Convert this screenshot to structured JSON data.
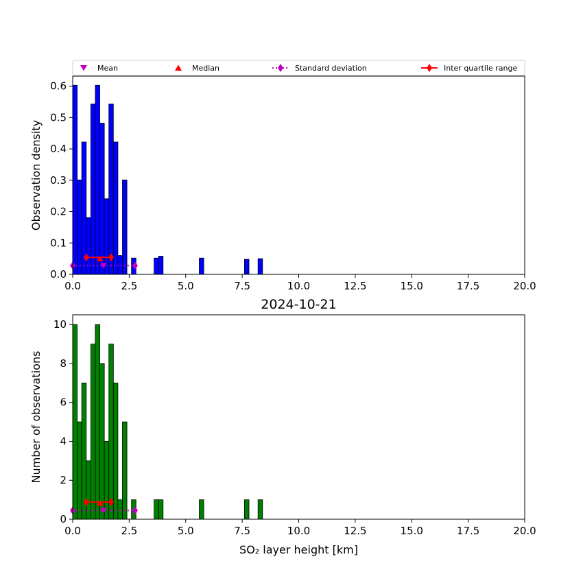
{
  "chart_data": [
    {
      "type": "bar",
      "ylabel": "Observation density",
      "xlabel": "",
      "xlim": [
        0,
        20
      ],
      "ylim": [
        0,
        0.632
      ],
      "xticks": [
        0.0,
        2.5,
        5.0,
        7.5,
        10.0,
        12.5,
        15.0,
        17.5,
        20.0
      ],
      "xtick_labels": [
        "0.0",
        "2.5",
        "5.0",
        "7.5",
        "10.0",
        "12.5",
        "15.0",
        "17.5",
        "20.0"
      ],
      "yticks": [
        0.0,
        0.1,
        0.2,
        0.3,
        0.4,
        0.5,
        0.6
      ],
      "ytick_labels": [
        "0.0",
        "0.1",
        "0.2",
        "0.3",
        "0.4",
        "0.5",
        "0.6"
      ],
      "bar_color": "#0000ff",
      "bin_width": 0.2,
      "bin_starts": [
        0.0,
        0.2,
        0.4,
        0.6,
        0.8,
        1.0,
        1.2,
        1.4,
        1.6,
        1.8,
        2.0,
        2.2,
        2.6,
        3.6,
        3.8,
        5.6,
        7.6,
        8.2
      ],
      "values": [
        0.603,
        0.301,
        0.422,
        0.181,
        0.543,
        0.603,
        0.482,
        0.241,
        0.543,
        0.422,
        0.06,
        0.301,
        0.052,
        0.052,
        0.058,
        0.052,
        0.048,
        0.05
      ],
      "stats": {
        "mean": {
          "x": 1.36,
          "y": 0.028
        },
        "median": {
          "x": 1.21,
          "y": 0.05
        },
        "std": {
          "x": [
            0.0,
            2.76
          ],
          "y": 0.028
        },
        "iqr": {
          "x": [
            0.6,
            1.7
          ],
          "y": 0.054
        }
      },
      "legend": {
        "placement": "top",
        "entries": [
          {
            "label": "Mean",
            "marker": "triangle-down",
            "color": "#bf00bf"
          },
          {
            "label": "Median",
            "marker": "triangle-up",
            "color": "#ff0000"
          },
          {
            "label": "Standard deviation",
            "marker": "diamond-dotted",
            "color": "#bf00bf"
          },
          {
            "label": "Inter quartile range",
            "marker": "diamond-line",
            "color": "#ff0000"
          }
        ]
      }
    },
    {
      "type": "bar",
      "title": "2024-10-21",
      "ylabel": "Number of observations",
      "xlabel": "SO₂ layer height [km]",
      "xlim": [
        0,
        20
      ],
      "ylim": [
        0,
        10.5
      ],
      "xticks": [
        0.0,
        2.5,
        5.0,
        7.5,
        10.0,
        12.5,
        15.0,
        17.5,
        20.0
      ],
      "xtick_labels": [
        "0.0",
        "2.5",
        "5.0",
        "7.5",
        "10.0",
        "12.5",
        "15.0",
        "17.5",
        "20.0"
      ],
      "yticks": [
        0,
        2,
        4,
        6,
        8,
        10
      ],
      "ytick_labels": [
        "0",
        "2",
        "4",
        "6",
        "8",
        "10"
      ],
      "bar_color": "#008000",
      "bin_width": 0.2,
      "bin_starts": [
        0.0,
        0.2,
        0.4,
        0.6,
        0.8,
        1.0,
        1.2,
        1.4,
        1.6,
        1.8,
        2.0,
        2.2,
        2.6,
        3.6,
        3.8,
        5.6,
        7.6,
        8.2
      ],
      "values": [
        10,
        5,
        7,
        3,
        9,
        10,
        8,
        4,
        9,
        7,
        1,
        5,
        1,
        1,
        1,
        1,
        1,
        1
      ],
      "stats": {
        "mean": {
          "x": 1.36,
          "y": 0.45
        },
        "median": {
          "x": 1.21,
          "y": 0.82
        },
        "std": {
          "x": [
            0.0,
            2.76
          ],
          "y": 0.45
        },
        "iqr": {
          "x": [
            0.6,
            1.7
          ],
          "y": 0.88
        }
      }
    }
  ]
}
